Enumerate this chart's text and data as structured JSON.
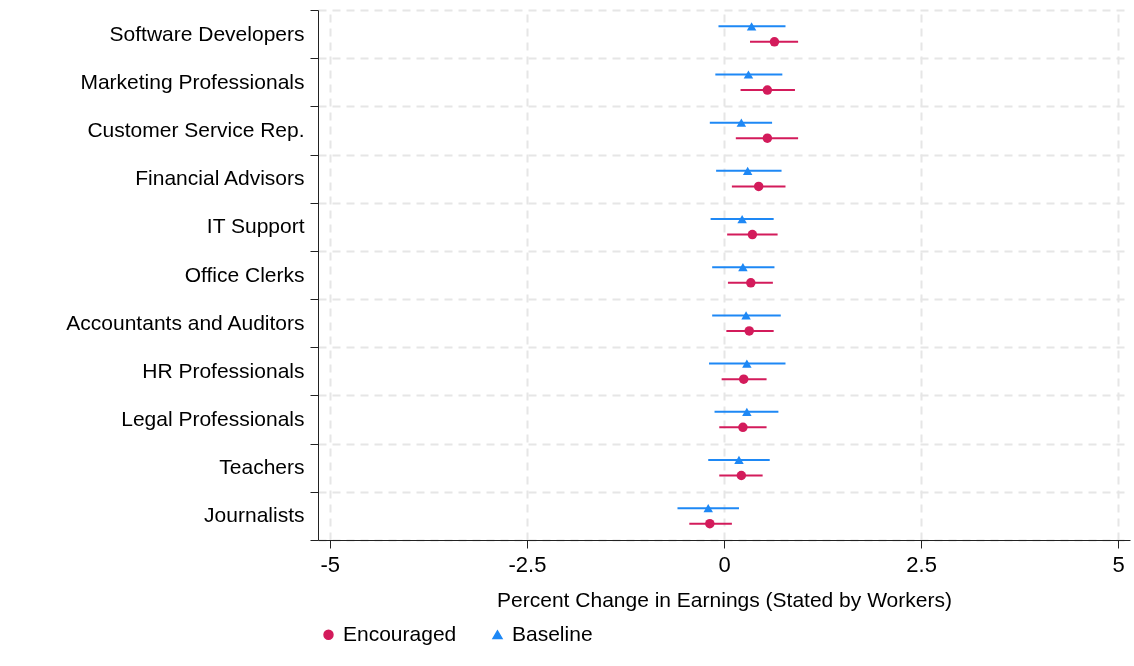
{
  "chart_data": {
    "type": "scatter",
    "orientation": "horizontal",
    "xlabel": "Percent Change in Earnings (Stated by Workers)",
    "categories": [
      "Software Developers",
      "Marketing Professionals",
      "Customer Service Rep.",
      "Financial Advisors",
      "IT Support",
      "Office Clerks",
      "Accountants and Auditors",
      "HR Professionals",
      "Legal Professionals",
      "Teachers",
      "Journalists"
    ],
    "series": [
      {
        "name": "Encouraged",
        "color": "#d31b5b",
        "marker": "circle",
        "values": [
          0.64,
          0.55,
          0.55,
          0.44,
          0.36,
          0.34,
          0.32,
          0.25,
          0.24,
          0.22,
          -0.18
        ],
        "errors": [
          [
            0.33,
            0.94
          ],
          [
            0.21,
            0.9
          ],
          [
            0.15,
            0.94
          ],
          [
            0.1,
            0.78
          ],
          [
            0.04,
            0.68
          ],
          [
            0.05,
            0.62
          ],
          [
            0.03,
            0.63
          ],
          [
            -0.03,
            0.54
          ],
          [
            -0.06,
            0.54
          ],
          [
            -0.06,
            0.49
          ],
          [
            -0.44,
            0.1
          ]
        ]
      },
      {
        "name": "Baseline",
        "color": "#1e88f5",
        "marker": "triangle",
        "values": [
          0.35,
          0.31,
          0.22,
          0.3,
          0.23,
          0.24,
          0.28,
          0.29,
          0.29,
          0.19,
          -0.2
        ],
        "errors": [
          [
            -0.07,
            0.78
          ],
          [
            -0.11,
            0.74
          ],
          [
            -0.18,
            0.61
          ],
          [
            -0.1,
            0.73
          ],
          [
            -0.17,
            0.63
          ],
          [
            -0.15,
            0.64
          ],
          [
            -0.15,
            0.72
          ],
          [
            -0.19,
            0.78
          ],
          [
            -0.12,
            0.69
          ],
          [
            -0.2,
            0.58
          ],
          [
            -0.59,
            0.19
          ]
        ]
      }
    ],
    "xlim": [
      -5.15,
      5.15
    ],
    "xticks": [
      -5,
      -2.5,
      0,
      2.5,
      5
    ],
    "grid": true,
    "legend": "bottom"
  }
}
